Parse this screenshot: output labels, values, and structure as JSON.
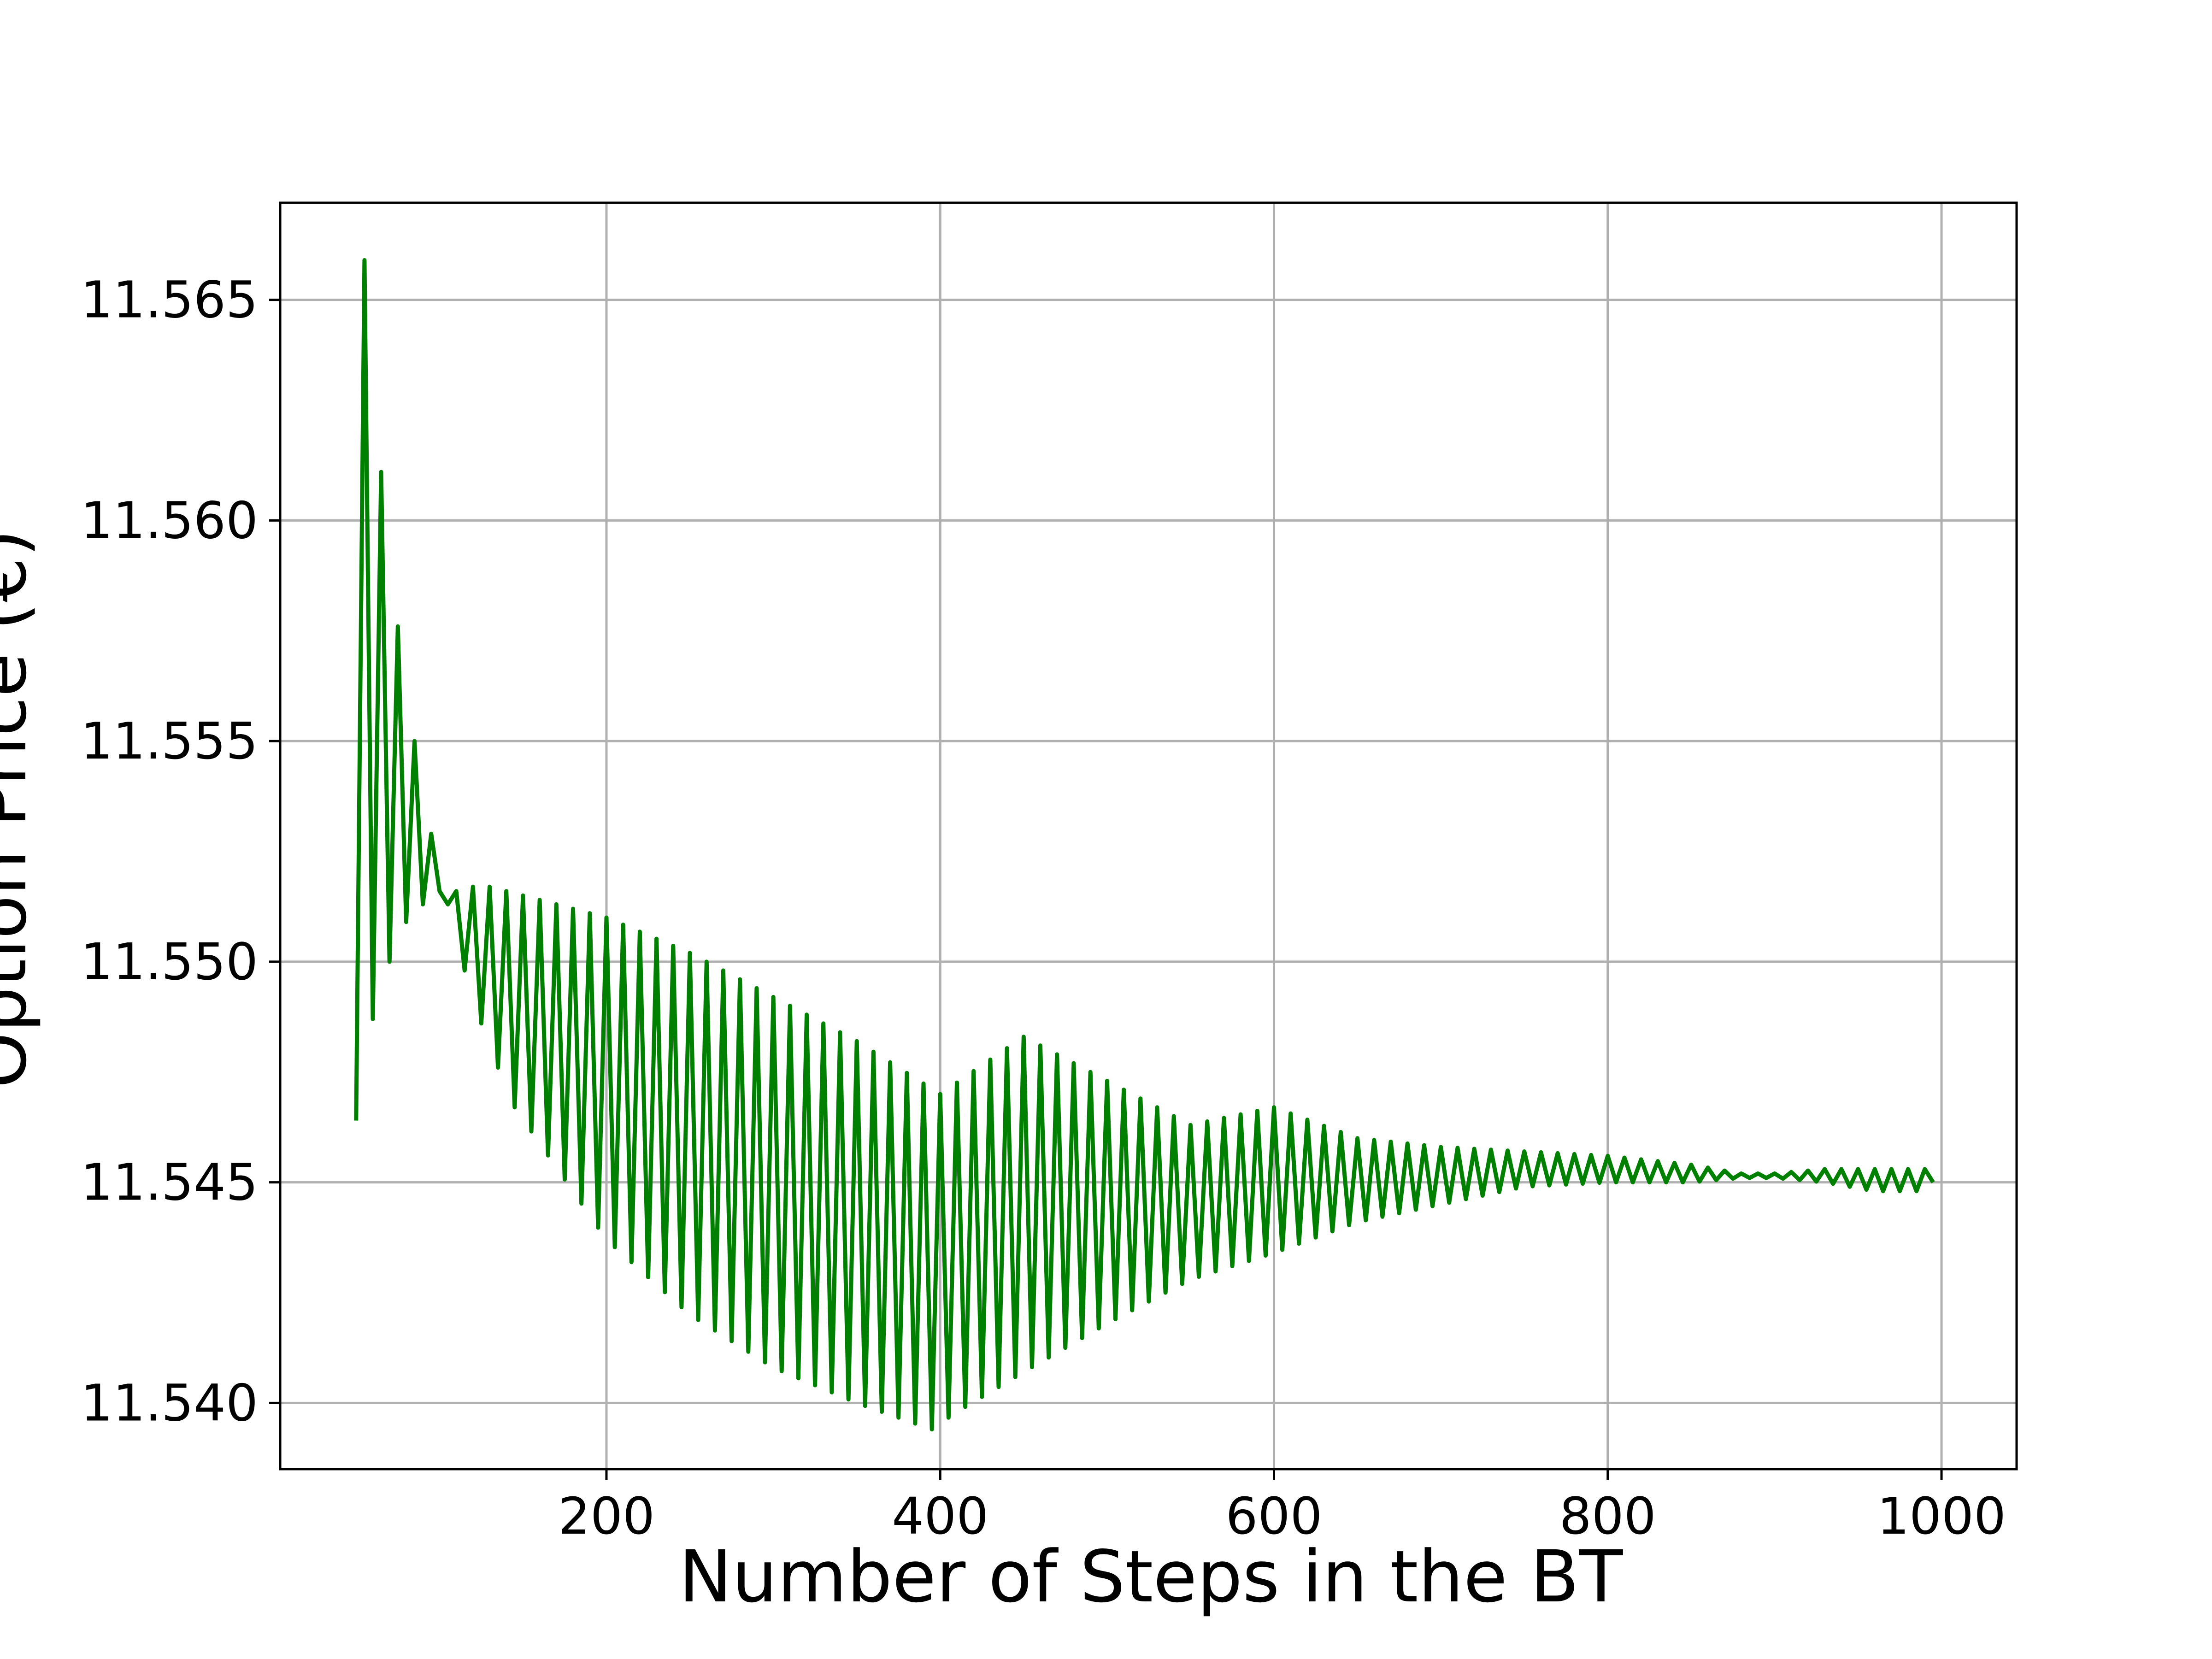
{
  "chart_data": {
    "type": "line",
    "title": "",
    "xlabel": "Number of Steps in the BT",
    "ylabel": "Option Price (€)",
    "xlim": [
      4.5,
      1045
    ],
    "ylim": [
      11.5385,
      11.5672
    ],
    "xticks": [
      200,
      400,
      600,
      800,
      1000
    ],
    "xtick_labels": [
      "200",
      "400",
      "600",
      "800",
      "1000"
    ],
    "yticks": [
      11.54,
      11.545,
      11.55,
      11.555,
      11.56,
      11.565
    ],
    "ytick_labels": [
      "11.540",
      "11.545",
      "11.550",
      "11.555",
      "11.560",
      "11.565"
    ],
    "grid": true,
    "legend": "none",
    "line_color": "#008000",
    "series": [
      {
        "name": "",
        "upper": [
          [
            50,
            11.5464
          ],
          [
            55,
            11.5659
          ],
          [
            65,
            11.5611
          ],
          [
            75,
            11.5576
          ],
          [
            85,
            11.555
          ],
          [
            95,
            11.5529
          ],
          [
            100,
            11.5516
          ],
          [
            105,
            11.5513
          ],
          [
            110,
            11.5516
          ],
          [
            120,
            11.5517
          ],
          [
            130,
            11.5517
          ],
          [
            140,
            11.5516
          ],
          [
            150,
            11.5515
          ],
          [
            200,
            11.551
          ],
          [
            250,
            11.5502
          ],
          [
            300,
            11.5492
          ],
          [
            350,
            11.5482
          ],
          [
            400,
            11.547
          ],
          [
            450,
            11.5483
          ],
          [
            500,
            11.5473
          ],
          [
            550,
            11.5463
          ],
          [
            600,
            11.5467
          ],
          [
            650,
            11.546
          ],
          [
            700,
            11.5458
          ],
          [
            750,
            11.5457
          ],
          [
            800,
            11.5456
          ],
          [
            850,
            11.5454
          ],
          [
            880,
            11.5452
          ],
          [
            900,
            11.5452
          ],
          [
            930,
            11.5453
          ],
          [
            960,
            11.5453
          ],
          [
            995,
            11.5453
          ]
        ],
        "lower": [
          [
            50,
            11.5464
          ],
          [
            60,
            11.5487
          ],
          [
            70,
            11.55
          ],
          [
            80,
            11.5509
          ],
          [
            90,
            11.5513
          ],
          [
            100,
            11.5516
          ],
          [
            110,
            11.5516
          ],
          [
            115,
            11.5498
          ],
          [
            125,
            11.5486
          ],
          [
            135,
            11.5476
          ],
          [
            145,
            11.5467
          ],
          [
            200,
            11.5437
          ],
          [
            250,
            11.542
          ],
          [
            300,
            11.5408
          ],
          [
            350,
            11.54
          ],
          [
            395,
            11.5394
          ],
          [
            410,
            11.5398
          ],
          [
            450,
            11.5407
          ],
          [
            500,
            11.5418
          ],
          [
            550,
            11.5428
          ],
          [
            600,
            11.5434
          ],
          [
            650,
            11.5441
          ],
          [
            700,
            11.5445
          ],
          [
            750,
            11.5449
          ],
          [
            800,
            11.545
          ],
          [
            850,
            11.545
          ],
          [
            880,
            11.5451
          ],
          [
            900,
            11.5451
          ],
          [
            930,
            11.545
          ],
          [
            960,
            11.5448
          ],
          [
            985,
            11.5448
          ],
          [
            995,
            11.545
          ]
        ]
      }
    ]
  }
}
